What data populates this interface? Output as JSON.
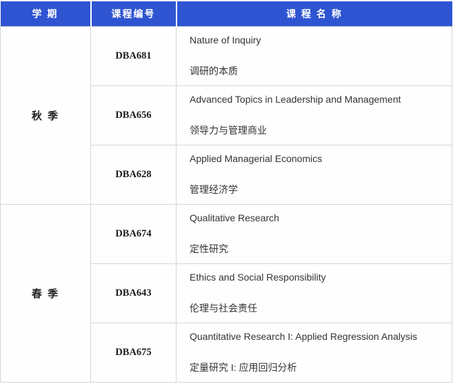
{
  "header": {
    "semester": "学 期",
    "code": "课程编号",
    "name": "课 程 名 称"
  },
  "groups": [
    {
      "semester": "秋 季",
      "courses": [
        {
          "code": "DBA681",
          "name_en": "Nature of Inquiry",
          "name_zh": "调研的本质"
        },
        {
          "code": "DBA656",
          "name_en": "Advanced Topics in Leadership and Management",
          "name_zh": "领导力与管理商业"
        },
        {
          "code": "DBA628",
          "name_en": "Applied Managerial Economics",
          "name_zh": "管理经济学"
        }
      ]
    },
    {
      "semester": "春 季",
      "courses": [
        {
          "code": "DBA674",
          "name_en": "Qualitative Research",
          "name_zh": "定性研究"
        },
        {
          "code": "DBA643",
          "name_en": "Ethics and Social Responsibility",
          "name_zh": "伦理与社会责任"
        },
        {
          "code": "DBA675",
          "name_en": "Quantitative Research I: Applied Regression Analysis",
          "name_zh": "定量研究 I: 应用回归分析"
        }
      ]
    }
  ],
  "colors": {
    "header_bg": "#2e54d2",
    "header_text": "#ffffff",
    "grid_border": "#d6d6d6",
    "body_text": "#333333"
  }
}
